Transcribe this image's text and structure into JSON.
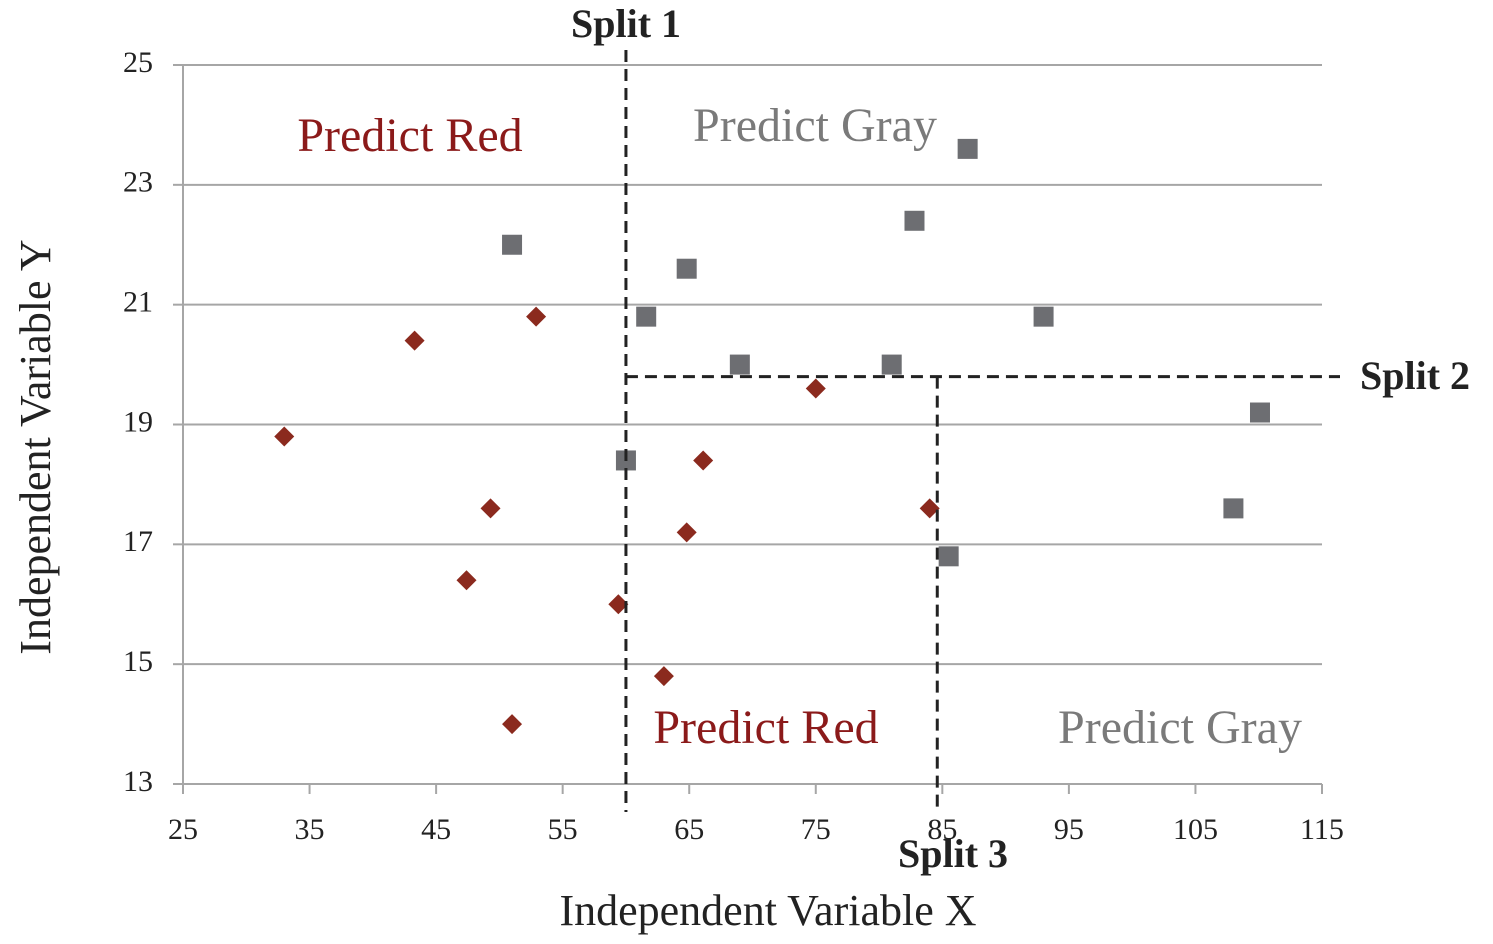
{
  "chart_data": {
    "type": "scatter",
    "xlabel": "Independent Variable X",
    "ylabel": "Independent Variable Y",
    "xlim": [
      25,
      115
    ],
    "xticks": [
      25,
      35,
      45,
      55,
      65,
      75,
      85,
      95,
      105,
      115
    ],
    "ylim": [
      13,
      25
    ],
    "yticks": [
      13,
      15,
      17,
      19,
      21,
      23,
      25
    ],
    "grid": true,
    "series": [
      {
        "color": "#8b2a1e",
        "marker": "diamond",
        "x": [
          33.0,
          43.3,
          52.9,
          49.3,
          47.4,
          51.0,
          59.4,
          63.0,
          66.1,
          64.8,
          75.0,
          84.0
        ],
        "y": [
          18.8,
          20.4,
          20.8,
          17.6,
          16.4,
          14.0,
          16.0,
          14.8,
          18.4,
          17.2,
          19.6,
          17.6
        ]
      },
      {
        "color": "#6d6e72",
        "marker": "square",
        "x": [
          51.0,
          61.6,
          64.8,
          69.0,
          81.0,
          82.8,
          87.0,
          93.0,
          60.0,
          85.5,
          108.0,
          110.1
        ],
        "y": [
          22.0,
          20.8,
          21.6,
          20.0,
          20.0,
          22.4,
          23.6,
          20.8,
          18.4,
          16.8,
          17.6,
          19.2
        ]
      }
    ],
    "splits": [
      {
        "label": "Split 1",
        "x": 60
      },
      {
        "label": "Split 2",
        "y": 19.8
      },
      {
        "label": "Split 3",
        "x": 84.6
      }
    ],
    "annotations": [
      {
        "text": "Predict Red",
        "color": "#8b1a1a"
      },
      {
        "text": "Predict Gray",
        "color": "#7a7a7a"
      },
      {
        "text": "Predict Red",
        "color": "#8b1a1a"
      },
      {
        "text": "Predict Gray",
        "color": "#7a7a7a"
      }
    ]
  }
}
